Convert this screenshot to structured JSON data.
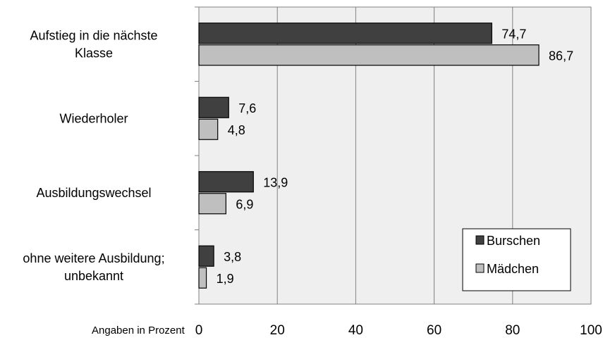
{
  "chart_data": {
    "type": "bar",
    "orientation": "horizontal",
    "categories": [
      [
        "Aufstieg in die nächste",
        "Klasse"
      ],
      [
        "Wiederholer"
      ],
      [
        "Ausbildungswechsel"
      ],
      [
        "ohne weitere Ausbildung;",
        "unbekannt"
      ]
    ],
    "series": [
      {
        "name": "Burschen",
        "color": "#404040",
        "values": [
          74.7,
          7.6,
          13.9,
          3.8
        ],
        "labels": [
          "74,7",
          "7,6",
          "13,9",
          "3,8"
        ]
      },
      {
        "name": "Mädchen",
        "color": "#bfbfbf",
        "values": [
          86.7,
          4.8,
          6.9,
          1.9
        ],
        "labels": [
          "86,7",
          "4,8",
          "6,9",
          "1,9"
        ]
      }
    ],
    "xlim": [
      0,
      100
    ],
    "xticks": [
      0,
      20,
      40,
      60,
      80,
      100
    ],
    "xlabel": "Angaben in Prozent",
    "grid": "vertical",
    "legend_position": "bottom-right",
    "plot_background": "#efefef"
  }
}
